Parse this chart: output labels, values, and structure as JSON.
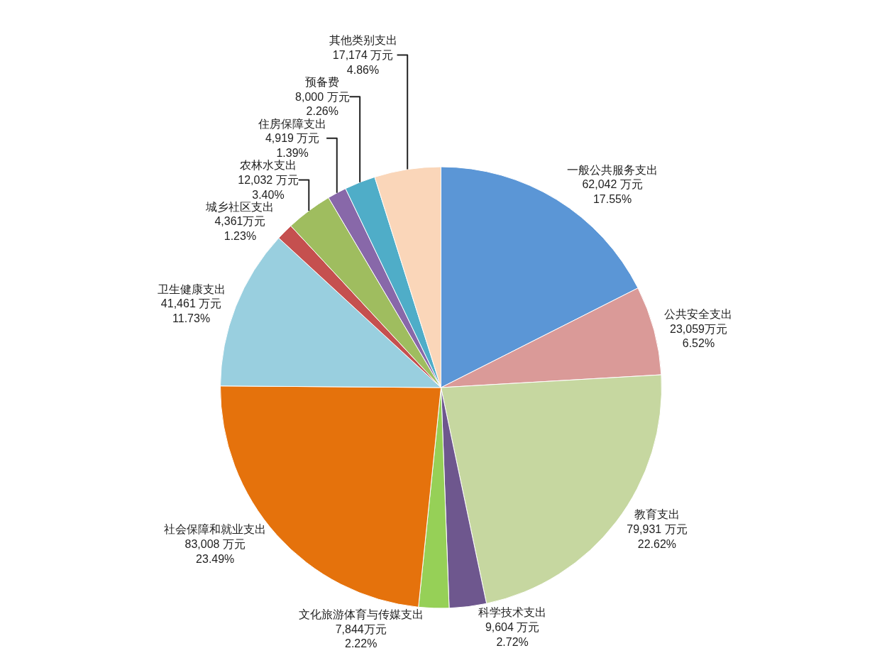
{
  "chart_data": {
    "type": "pie",
    "categories": [
      "一般公共服务支出",
      "公共安全支出",
      "教育支出",
      "科学技术支出",
      "文化旅游体育与传媒支出",
      "社会保障和就业支出",
      "卫生健康支出",
      "城乡社区支出",
      "农林水支出",
      "住房保障支出",
      "预备费",
      "其他类别支出"
    ],
    "values": [
      62042,
      23059,
      79931,
      9604,
      7844,
      83008,
      41461,
      4361,
      12032,
      4919,
      8000,
      17174
    ],
    "value_labels": [
      "62,042 万元\n17.55%",
      "23,059万元\n6.52%",
      "79,931 万元\n22.62%",
      "9,604 万元\n2.72%",
      "7,844万元\n2.22%",
      "83,008 万元\n23.49%",
      "41,461 万元\n11.73%",
      "4,361万元\n1.23%",
      "12,032 万元\n3.40%",
      "4,919 万元\n1.39%",
      "8,000 万元\n2.26%",
      "17,174 万元\n4.86%"
    ],
    "colors": [
      "#5b96d6",
      "#da9a98",
      "#c6d7a0",
      "#6e578e",
      "#96d057",
      "#e5720c",
      "#99cfdf",
      "#c5504f",
      "#9fbd5f",
      "#8868a9",
      "#4fadc8",
      "#fad6b9"
    ],
    "legend": false
  }
}
